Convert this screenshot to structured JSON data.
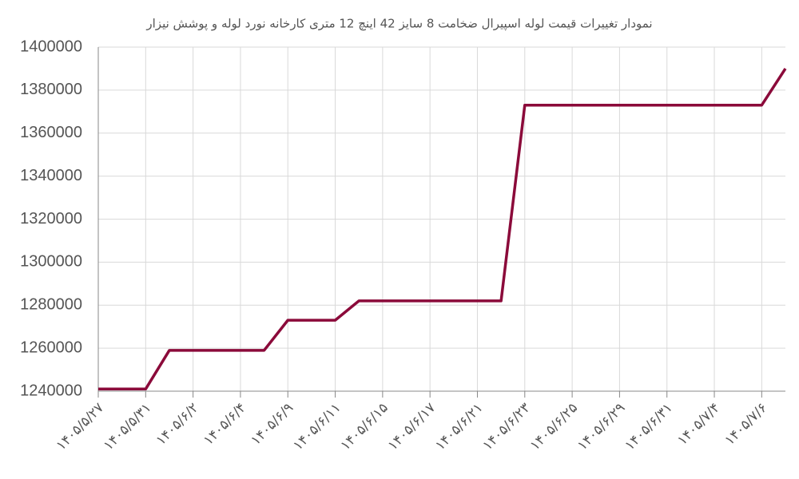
{
  "chart_data": {
    "type": "line",
    "title": "نمودار تغییرات قیمت لوله اسپیرال ضخامت 8 سایز 42 اینچ 12 متری کارخانه نورد لوله و پوشش نیزار",
    "categories": [
      "۱۴۰۵/۵/۲۷",
      null,
      "۱۴۰۵/۵/۳۱",
      null,
      "۱۴۰۵/۶/۲",
      null,
      "۱۴۰۵/۶/۴",
      null,
      "۱۴۰۵/۶/۹",
      null,
      "۱۴۰۵/۶/۱۱",
      null,
      "۱۴۰۵/۶/۱۵",
      null,
      "۱۴۰۵/۶/۱۷",
      null,
      "۱۴۰۵/۶/۲۱",
      null,
      "۱۴۰۵/۶/۲۳",
      null,
      "۱۴۰۵/۶/۲۵",
      null,
      "۱۴۰۵/۶/۲۹",
      null,
      "۱۴۰۵/۶/۳۱",
      null,
      "۱۴۰۵/۷/۴",
      null,
      "۱۴۰۵/۷/۶",
      null
    ],
    "series": [
      {
        "color": "#8b0a3a",
        "values": [
          1241000,
          1241000,
          1241000,
          1259000,
          1259000,
          1259000,
          1259000,
          1259000,
          1273000,
          1273000,
          1273000,
          1282000,
          1282000,
          1282000,
          1282000,
          1282000,
          1282000,
          1282000,
          1373000,
          1373000,
          1373000,
          1373000,
          1373000,
          1373000,
          1373000,
          1373000,
          1373000,
          1373000,
          1373000,
          1390000
        ]
      }
    ],
    "ylim": [
      1240000,
      1400000
    ],
    "yticks": [
      1240000,
      1260000,
      1280000,
      1300000,
      1320000,
      1340000,
      1360000,
      1380000,
      1400000
    ],
    "grid": true
  }
}
